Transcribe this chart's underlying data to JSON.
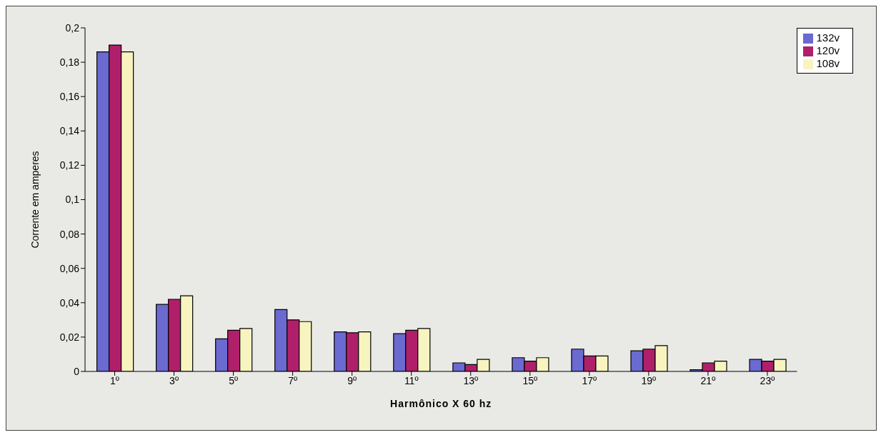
{
  "chart_data": {
    "type": "bar",
    "xlabel": "Harmônico X 60 hz",
    "ylabel": "Corrente em amperes",
    "categories": [
      "1º",
      "3º",
      "5º",
      "7º",
      "9º",
      "11º",
      "13º",
      "15º",
      "17º",
      "19º",
      "21º",
      "23º"
    ],
    "series": [
      {
        "name": "132v",
        "color": "#6a6ad0",
        "values": [
          0.186,
          0.039,
          0.019,
          0.036,
          0.023,
          0.022,
          0.005,
          0.008,
          0.013,
          0.012,
          0.001,
          0.007
        ]
      },
      {
        "name": "120v",
        "color": "#b0206a",
        "values": [
          0.19,
          0.042,
          0.024,
          0.03,
          0.0225,
          0.024,
          0.004,
          0.006,
          0.009,
          0.013,
          0.005,
          0.006
        ]
      },
      {
        "name": "108v",
        "color": "#f8f4c0",
        "values": [
          0.186,
          0.044,
          0.025,
          0.029,
          0.023,
          0.025,
          0.007,
          0.008,
          0.009,
          0.015,
          0.006,
          0.007
        ]
      }
    ],
    "ylim": [
      0,
      0.2
    ],
    "yticks": [
      0,
      {
        "value": 0.02,
        "label": "0,02"
      },
      {
        "value": 0.04,
        "label": "0,04"
      },
      {
        "value": 0.06,
        "label": "0,06"
      },
      {
        "value": 0.08,
        "label": "0,08"
      },
      {
        "value": 0.1,
        "label": "0,1"
      },
      {
        "value": 0.12,
        "label": "0,12"
      },
      {
        "value": 0.14,
        "label": "0,14"
      },
      {
        "value": 0.16,
        "label": "0,16"
      },
      {
        "value": 0.18,
        "label": "0,18"
      },
      {
        "value": 0.2,
        "label": "0,2"
      }
    ],
    "legend": "top right"
  }
}
